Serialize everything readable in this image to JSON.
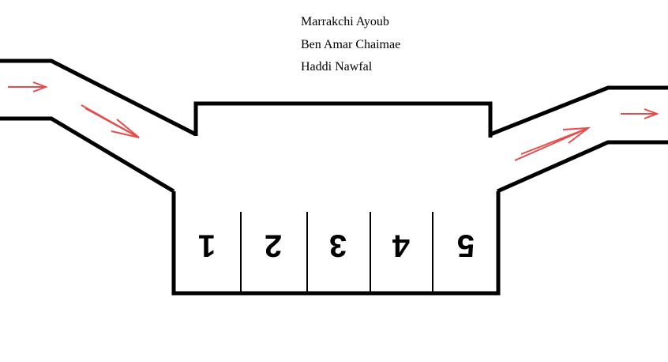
{
  "authors": [
    "Marrakchi Ayoub",
    "Ben Amar Chaimae",
    "Haddi Nawfal"
  ],
  "slots": [
    "1",
    "2",
    "3",
    "4",
    "5"
  ],
  "colors": {
    "line": "#000000",
    "arrow": "#e84a4a",
    "background": "#ffffff"
  },
  "arrows": [
    "entry-arrow",
    "entry-ramp-arrow",
    "exit-ramp-arrow",
    "exit-arrow"
  ]
}
